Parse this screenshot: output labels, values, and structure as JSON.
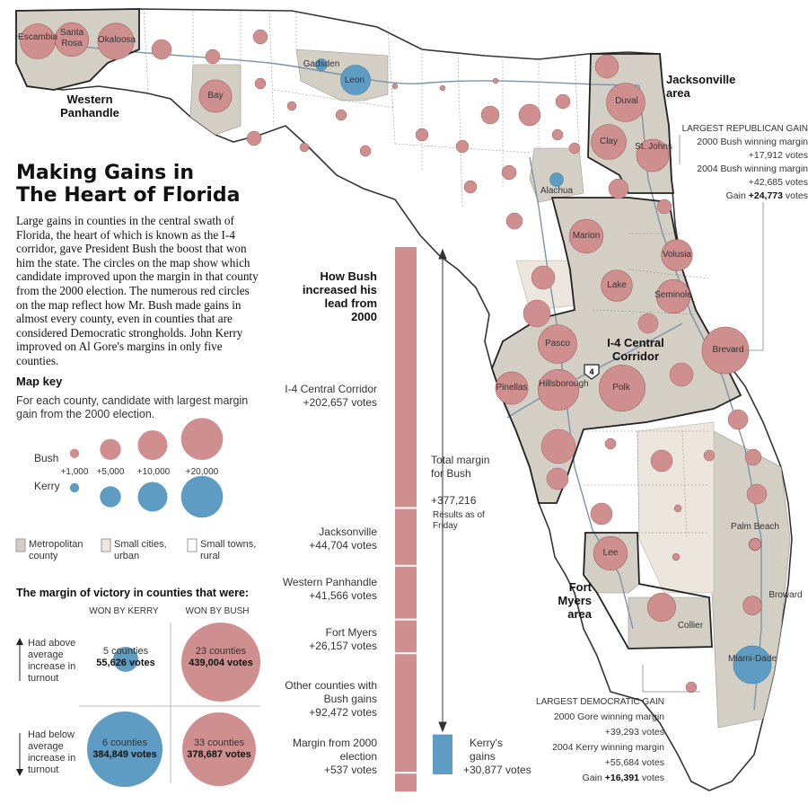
{
  "title": [
    "Making Gains in",
    "The Heart of Florida"
  ],
  "intro": "Large gains in counties in the central swath of Florida, the heart of which is known as the I-4 corridor, gave President Bush the boost that won him the state. The circles on the map show which candidate improved upon the margin in that county from the 2000 election. The numerous red circles on the map reflect how Mr. Bush made gains in almost every county, even in counties that are considered Democratic strongholds. John Kerry improved on Al Gore's margins in only five counties.",
  "colors": {
    "bush": "#cf8f8f",
    "kerry": "#5f9cc3",
    "metro": "#d4cfc5",
    "small_city": "#ede6df",
    "rural": "#ffffff",
    "bar": "#cf8f8f"
  },
  "map_key": {
    "title": "Map key",
    "desc": "For each county, candidate with largest margin gain from the 2000 election.",
    "bush_label": "Bush",
    "kerry_label": "Kerry",
    "sizes": [
      "+1,000",
      "+5,000",
      "+10,000",
      "+20,000"
    ],
    "legend": [
      "Metropolitan county",
      "Small cities, urban",
      "Small towns, rural"
    ]
  },
  "turnout": {
    "title": "The margin of victory in counties that were:",
    "col_kerry": "WON BY KERRY",
    "col_bush": "WON BY BUSH",
    "row_above": "Had above average increase in turnout",
    "row_below": "Had below average increase in turnout",
    "cells": [
      {
        "counties": "5 counties",
        "votes": "55,626 votes"
      },
      {
        "counties": "23 counties",
        "votes": "439,004 votes"
      },
      {
        "counties": "6 counties",
        "votes": "384,849 votes"
      },
      {
        "counties": "33 counties",
        "votes": "378,687 votes"
      }
    ]
  },
  "bar": {
    "title": "How Bush increased his lead from 2000",
    "segments": [
      {
        "label": "I-4 Central Corridor",
        "value": "+202,657 votes",
        "amount": 202657
      },
      {
        "label": "Jacksonville",
        "value": "+44,704 votes",
        "amount": 44704
      },
      {
        "label": "Western Panhandle",
        "value": "+41,566 votes",
        "amount": 41566
      },
      {
        "label": "Fort Myers",
        "value": "+26,157 votes",
        "amount": 26157
      },
      {
        "label": "Other counties with Bush gains",
        "value": "+92,472 votes",
        "amount": 92472
      },
      {
        "label": "Margin from 2000 election",
        "value": "+537 votes",
        "amount": 537
      }
    ],
    "total_label": "Total margin for Bush",
    "total_value": "+377,216",
    "note": "Results as of Friday",
    "kerry_label": "Kerry's gains",
    "kerry_value": "+30,877 votes",
    "kerry_amount": 30877
  },
  "regions": {
    "western": "Western Panhandle",
    "jacksonville": "Jacksonville area",
    "i4": "I-4 Central Corridor",
    "fort_myers": "Fort Myers area",
    "route": "4"
  },
  "rep_gain": {
    "heading": "LARGEST REPUBLICAN GAIN",
    "l1": "2000 Bush winning margin",
    "v1": "+17,912 votes",
    "l2": "2004 Bush winning margin",
    "v2": "+42,685 votes",
    "l3": "Gain",
    "v3": "+24,773",
    "v3_unit": "votes"
  },
  "dem_gain": {
    "heading": "LARGEST DEMOCRATIC GAIN",
    "l1": "2000 Gore winning margin",
    "v1": "+39,293 votes",
    "l2": "2004 Kerry winning margin",
    "v2": "+55,684 votes",
    "l3": "Gain",
    "v3": "+16,391",
    "v3_unit": "votes"
  },
  "counties": [
    {
      "name": "Escambia",
      "party": "bush",
      "gain": 14000
    },
    {
      "name": "Santa Rosa",
      "party": "bush",
      "gain": 13000
    },
    {
      "name": "Okaloosa",
      "party": "bush",
      "gain": 15000
    },
    {
      "name": "Bay",
      "party": "bush",
      "gain": 12000
    },
    {
      "name": "Gadsden",
      "party": "kerry",
      "gain": 1500
    },
    {
      "name": "Leon",
      "party": "kerry",
      "gain": 10000
    },
    {
      "name": "Alachua",
      "party": "kerry",
      "gain": 2000
    },
    {
      "name": "Duval",
      "party": "bush",
      "gain": 17000
    },
    {
      "name": "Clay",
      "party": "bush",
      "gain": 14000
    },
    {
      "name": "St. Johns",
      "party": "bush",
      "gain": 12000
    },
    {
      "name": "Marion",
      "party": "bush",
      "gain": 13000
    },
    {
      "name": "Volusia",
      "party": "bush",
      "gain": 11000
    },
    {
      "name": "Lake",
      "party": "bush",
      "gain": 11000
    },
    {
      "name": "Seminole",
      "party": "bush",
      "gain": 13000
    },
    {
      "name": "Pasco",
      "party": "bush",
      "gain": 17000
    },
    {
      "name": "Brevard",
      "party": "bush",
      "gain": 24773
    },
    {
      "name": "Pinellas",
      "party": "bush",
      "gain": 12000
    },
    {
      "name": "Hillsborough",
      "party": "bush",
      "gain": 19000
    },
    {
      "name": "Polk",
      "party": "bush",
      "gain": 24000
    },
    {
      "name": "Lee",
      "party": "bush",
      "gain": 13000
    },
    {
      "name": "Palm Beach",
      "party": "bush",
      "gain": 1500
    },
    {
      "name": "Broward",
      "party": "bush",
      "gain": 4000
    },
    {
      "name": "Collier",
      "party": "bush",
      "gain": 9000
    },
    {
      "name": "Miami-Dade",
      "party": "kerry",
      "gain": 16391
    }
  ]
}
